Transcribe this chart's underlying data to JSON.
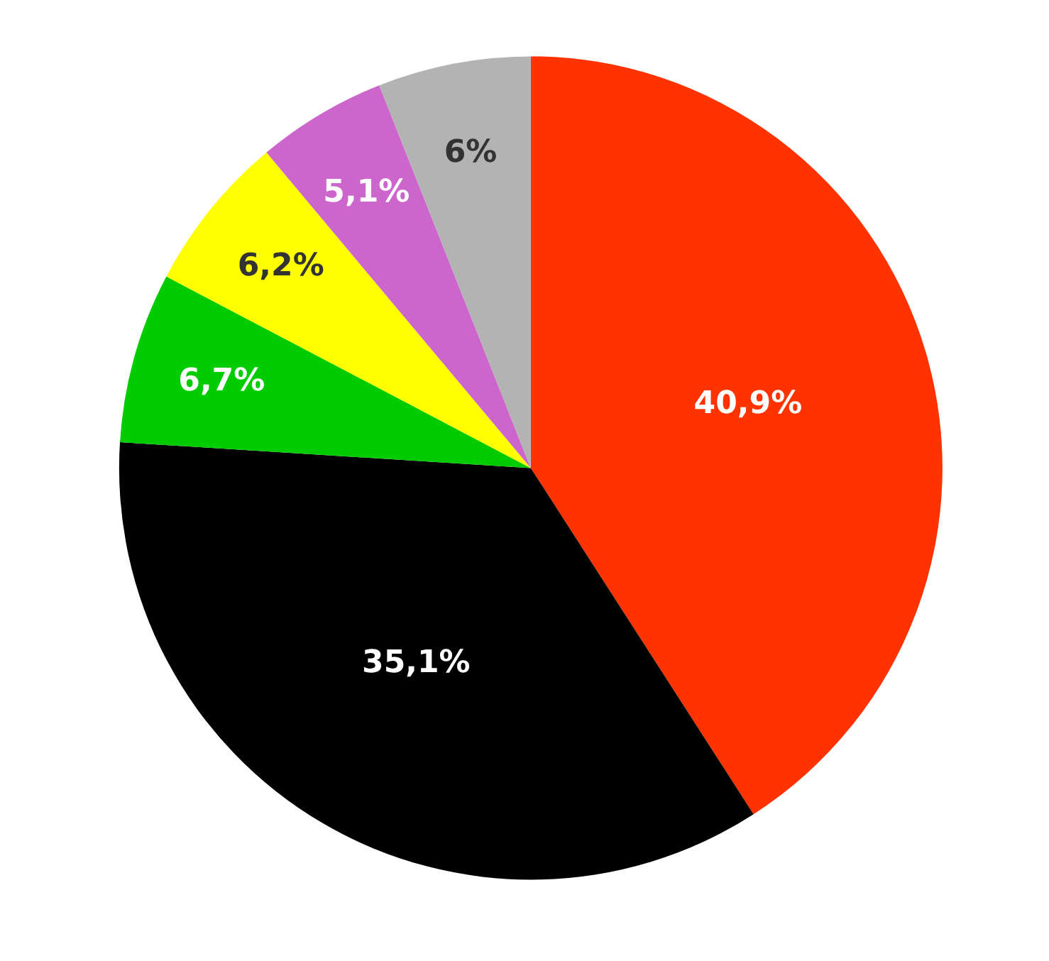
{
  "chart_data": {
    "type": "pie",
    "categories": [
      null,
      null,
      null,
      null,
      null,
      null
    ],
    "values": [
      40.9,
      35.1,
      6.7,
      6.2,
      5.1,
      6
    ],
    "colors": [
      "#ff3300",
      "#000000",
      "#00cc00",
      "#ffff00",
      "#cc66cc",
      "#b3b3b3"
    ],
    "value_labels": [
      "40,9%",
      "35,1%",
      "6,7%",
      "6,2%",
      "5,1%",
      "6%"
    ]
  }
}
